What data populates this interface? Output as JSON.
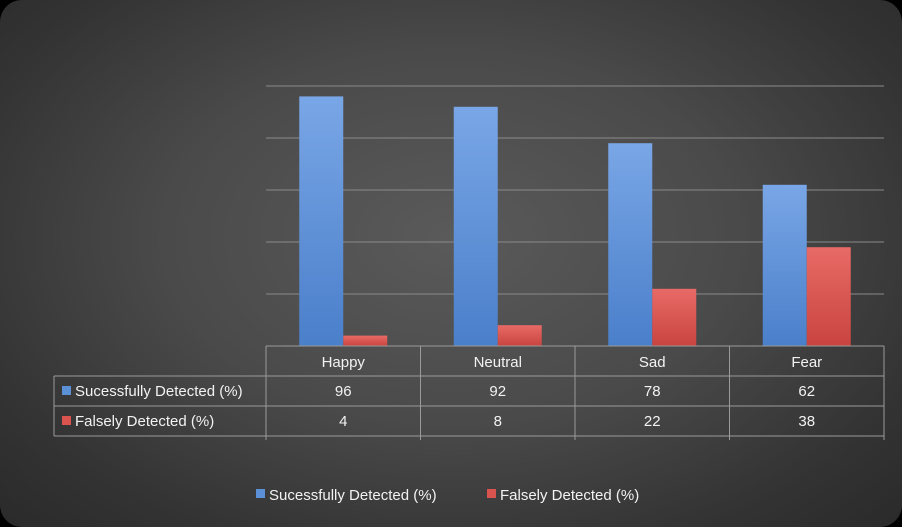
{
  "chart_data": {
    "type": "bar",
    "categories": [
      "Happy",
      "Neutral",
      "Sad",
      "Fear"
    ],
    "series": [
      {
        "name": "Sucessfully Detected (%)",
        "values": [
          96,
          92,
          78,
          62
        ],
        "color": "#5b8fd6"
      },
      {
        "name": "Falsely Detected (%)",
        "values": [
          4,
          8,
          22,
          38
        ],
        "color": "#d9534f"
      }
    ],
    "ylim": [
      0,
      100
    ],
    "grid": true,
    "legend": "bottom",
    "data_table": true
  }
}
